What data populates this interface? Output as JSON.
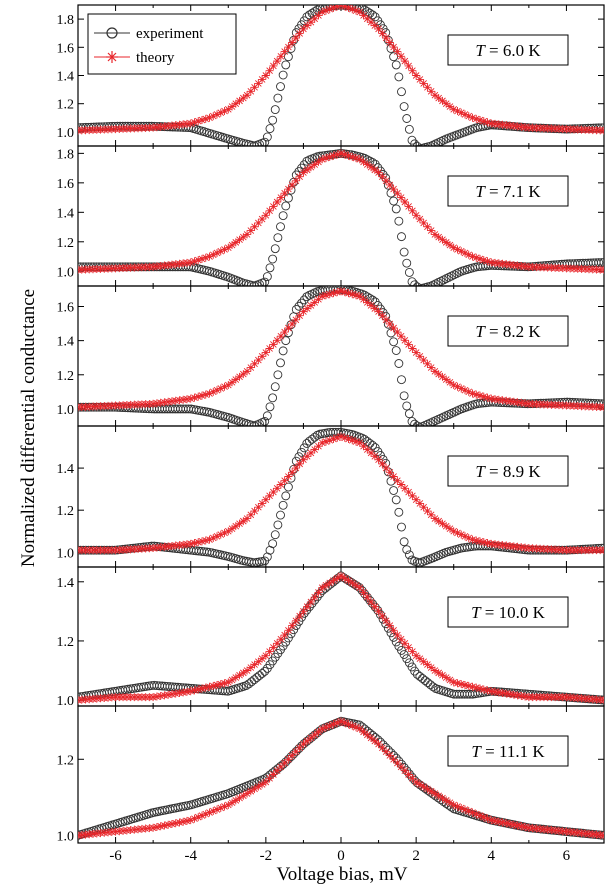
{
  "chart_data": {
    "type": "line",
    "ylabel": "Normalized differential conductance",
    "xlabel": "Voltage bias, mV",
    "xlim": [
      -7,
      7
    ],
    "x_ticks": [
      -6,
      -4,
      -2,
      0,
      2,
      4,
      6
    ],
    "grid": false,
    "legend": {
      "placement": "top-left of first panel",
      "entries": [
        {
          "name": "experiment",
          "marker": "open-circle",
          "color": "#333333"
        },
        {
          "name": "theory",
          "marker": "asterisk",
          "color": "#e8262b"
        }
      ]
    },
    "panels": [
      {
        "label_prefix": "T",
        "label_value": "= 6.0 K",
        "ylim": [
          0.9,
          1.9
        ],
        "yticks": [
          "1.0",
          "1.2",
          "1.4",
          "1.6",
          "1.8"
        ],
        "series": [
          {
            "name": "experiment",
            "x": [
              -7,
              -6,
              -5,
              -4,
              -3.5,
              -3,
              -2.6,
              -2.3,
              -2.0,
              -1.8,
              -1.5,
              -1.2,
              -0.9,
              -0.6,
              -0.3,
              0,
              0.3,
              0.6,
              0.9,
              1.2,
              1.5,
              1.7,
              1.9,
              2.1,
              2.4,
              2.8,
              3.2,
              3.6,
              4,
              5,
              6,
              7
            ],
            "y": [
              1.03,
              1.04,
              1.04,
              1.03,
              0.99,
              0.95,
              0.92,
              0.9,
              0.93,
              1.1,
              1.45,
              1.7,
              1.82,
              1.87,
              1.89,
              1.9,
              1.89,
              1.87,
              1.82,
              1.7,
              1.45,
              1.15,
              0.93,
              0.88,
              0.9,
              0.95,
              0.99,
              1.03,
              1.05,
              1.03,
              1.02,
              1.03
            ]
          },
          {
            "name": "theory",
            "x": [
              -7,
              -6,
              -5,
              -4,
              -3.5,
              -3,
              -2.5,
              -2,
              -1.5,
              -1,
              -0.5,
              0,
              0.5,
              1,
              1.5,
              2,
              2.5,
              3,
              3.5,
              4,
              5,
              6,
              7
            ],
            "y": [
              1.01,
              1.02,
              1.03,
              1.06,
              1.1,
              1.16,
              1.26,
              1.4,
              1.57,
              1.73,
              1.85,
              1.9,
              1.85,
              1.73,
              1.57,
              1.4,
              1.26,
              1.16,
              1.1,
              1.06,
              1.03,
              1.02,
              1.01
            ]
          }
        ]
      },
      {
        "label_prefix": "T",
        "label_value": "= 7.1 K",
        "ylim": [
          0.9,
          1.85
        ],
        "yticks": [
          "1.0",
          "1.2",
          "1.4",
          "1.6",
          "1.8"
        ],
        "series": [
          {
            "name": "experiment",
            "x": [
              -7,
              -6,
              -5,
              -4,
              -3.5,
              -3,
              -2.6,
              -2.3,
              -2.0,
              -1.8,
              -1.5,
              -1.2,
              -0.9,
              -0.6,
              -0.3,
              0,
              0.3,
              0.6,
              0.9,
              1.2,
              1.5,
              1.7,
              1.9,
              2.1,
              2.4,
              2.8,
              3.2,
              3.6,
              4,
              5,
              6,
              7
            ],
            "y": [
              1.03,
              1.03,
              1.03,
              1.03,
              1.0,
              0.96,
              0.92,
              0.9,
              0.93,
              1.1,
              1.42,
              1.65,
              1.75,
              1.78,
              1.79,
              1.8,
              1.79,
              1.77,
              1.73,
              1.63,
              1.4,
              1.1,
              0.92,
              0.88,
              0.9,
              0.95,
              1.0,
              1.03,
              1.04,
              1.03,
              1.05,
              1.06
            ]
          },
          {
            "name": "theory",
            "x": [
              -7,
              -6,
              -5,
              -4,
              -3.5,
              -3,
              -2.5,
              -2,
              -1.5,
              -1,
              -0.5,
              0,
              0.5,
              1,
              1.5,
              2,
              2.5,
              3,
              3.5,
              4,
              5,
              6,
              7
            ],
            "y": [
              1.01,
              1.02,
              1.03,
              1.06,
              1.1,
              1.16,
              1.25,
              1.38,
              1.53,
              1.67,
              1.76,
              1.8,
              1.76,
              1.67,
              1.53,
              1.38,
              1.25,
              1.16,
              1.1,
              1.06,
              1.03,
              1.02,
              1.01
            ]
          }
        ]
      },
      {
        "label_prefix": "T",
        "label_value": "= 8.2 K",
        "ylim": [
          0.9,
          1.72
        ],
        "yticks": [
          "1.0",
          "1.2",
          "1.4",
          "1.6"
        ],
        "series": [
          {
            "name": "experiment",
            "x": [
              -7,
              -6,
              -5,
              -4,
              -3.5,
              -3,
              -2.6,
              -2.3,
              -2.0,
              -1.8,
              -1.5,
              -1.2,
              -0.9,
              -0.6,
              -0.3,
              0,
              0.3,
              0.6,
              0.9,
              1.2,
              1.5,
              1.7,
              1.9,
              2.1,
              2.4,
              2.8,
              3.2,
              3.6,
              4,
              5,
              6,
              7
            ],
            "y": [
              1.01,
              1.01,
              1.0,
              1.0,
              0.98,
              0.95,
              0.92,
              0.9,
              0.93,
              1.08,
              1.38,
              1.58,
              1.66,
              1.69,
              1.7,
              1.7,
              1.69,
              1.67,
              1.63,
              1.54,
              1.32,
              1.05,
              0.92,
              0.89,
              0.92,
              0.96,
              1.0,
              1.03,
              1.04,
              1.03,
              1.04,
              1.03
            ]
          },
          {
            "name": "theory",
            "x": [
              -7,
              -6,
              -5,
              -4,
              -3.5,
              -3,
              -2.5,
              -2,
              -1.5,
              -1,
              -0.5,
              0,
              0.5,
              1,
              1.5,
              2,
              2.5,
              3,
              3.5,
              4,
              5,
              6,
              7
            ],
            "y": [
              1.01,
              1.02,
              1.03,
              1.06,
              1.09,
              1.14,
              1.22,
              1.33,
              1.45,
              1.57,
              1.66,
              1.69,
              1.66,
              1.57,
              1.45,
              1.33,
              1.22,
              1.14,
              1.09,
              1.06,
              1.03,
              1.02,
              1.01
            ]
          }
        ]
      },
      {
        "label_prefix": "T",
        "label_value": "= 8.9 K",
        "ylim": [
          0.93,
          1.6
        ],
        "yticks": [
          "1.0",
          "1.2",
          "1.4"
        ],
        "series": [
          {
            "name": "experiment",
            "x": [
              -7,
              -6,
              -5,
              -4,
              -3.5,
              -3,
              -2.6,
              -2.3,
              -2.0,
              -1.8,
              -1.5,
              -1.2,
              -0.9,
              -0.6,
              -0.3,
              0,
              0.3,
              0.6,
              0.9,
              1.2,
              1.5,
              1.7,
              1.9,
              2.1,
              2.4,
              2.8,
              3.2,
              3.6,
              4,
              5,
              6,
              7
            ],
            "y": [
              1.01,
              1.01,
              1.03,
              1.01,
              1.0,
              0.98,
              0.96,
              0.95,
              0.96,
              1.05,
              1.25,
              1.43,
              1.52,
              1.56,
              1.57,
              1.57,
              1.56,
              1.54,
              1.5,
              1.42,
              1.23,
              1.03,
              0.96,
              0.95,
              0.97,
              1.0,
              1.02,
              1.03,
              1.03,
              1.01,
              1.01,
              1.02
            ]
          },
          {
            "name": "theory",
            "x": [
              -7,
              -6,
              -5,
              -4,
              -3.5,
              -3,
              -2.5,
              -2,
              -1.5,
              -1,
              -0.5,
              0,
              0.5,
              1,
              1.5,
              2,
              2.5,
              3,
              3.5,
              4,
              5,
              6,
              7
            ],
            "y": [
              1.01,
              1.01,
              1.02,
              1.04,
              1.06,
              1.1,
              1.16,
              1.25,
              1.34,
              1.44,
              1.52,
              1.55,
              1.52,
              1.44,
              1.34,
              1.25,
              1.16,
              1.1,
              1.06,
              1.04,
              1.02,
              1.01,
              1.01
            ]
          }
        ]
      },
      {
        "label_prefix": "T",
        "label_value": "= 10.0 K",
        "ylim": [
          0.98,
          1.45
        ],
        "yticks": [
          "1.0",
          "1.2",
          "1.4"
        ],
        "series": [
          {
            "name": "experiment",
            "x": [
              -7,
              -6,
              -5,
              -4,
              -3,
              -2.5,
              -2,
              -1.5,
              -1,
              -0.5,
              0,
              0.5,
              1,
              1.5,
              2,
              2.5,
              3,
              3.5,
              4,
              5,
              6,
              7
            ],
            "y": [
              1.01,
              1.03,
              1.05,
              1.04,
              1.03,
              1.05,
              1.1,
              1.19,
              1.29,
              1.37,
              1.42,
              1.38,
              1.3,
              1.19,
              1.09,
              1.04,
              1.02,
              1.02,
              1.03,
              1.02,
              1.01,
              1.0
            ]
          },
          {
            "name": "theory",
            "x": [
              -7,
              -6,
              -5,
              -4,
              -3,
              -2.5,
              -2,
              -1.5,
              -1,
              -0.5,
              0,
              0.5,
              1,
              1.5,
              2,
              2.5,
              3,
              4,
              5,
              6,
              7
            ],
            "y": [
              1.0,
              1.01,
              1.01,
              1.03,
              1.06,
              1.1,
              1.15,
              1.22,
              1.3,
              1.38,
              1.42,
              1.38,
              1.3,
              1.22,
              1.15,
              1.1,
              1.06,
              1.03,
              1.01,
              1.01,
              1.0
            ]
          }
        ]
      },
      {
        "label_prefix": "T",
        "label_value": "= 11.1 K",
        "ylim": [
          0.98,
          1.34
        ],
        "yticks": [
          "1.0",
          "1.2"
        ],
        "series": [
          {
            "name": "experiment",
            "x": [
              -7,
              -6,
              -5,
              -4,
              -3,
              -2,
              -1.5,
              -1,
              -0.5,
              0,
              0.5,
              1,
              1.5,
              2,
              3,
              4,
              5,
              6,
              7
            ],
            "y": [
              1.0,
              1.03,
              1.06,
              1.08,
              1.11,
              1.15,
              1.19,
              1.24,
              1.28,
              1.3,
              1.29,
              1.25,
              1.2,
              1.14,
              1.07,
              1.04,
              1.02,
              1.01,
              1.0
            ]
          },
          {
            "name": "theory",
            "x": [
              -7,
              -6,
              -5,
              -4,
              -3,
              -2,
              -1.5,
              -1,
              -0.5,
              0,
              0.5,
              1,
              1.5,
              2,
              3,
              4,
              5,
              6,
              7
            ],
            "y": [
              1.0,
              1.01,
              1.02,
              1.04,
              1.08,
              1.14,
              1.19,
              1.24,
              1.28,
              1.3,
              1.28,
              1.24,
              1.19,
              1.14,
              1.08,
              1.04,
              1.02,
              1.01,
              1.0
            ]
          }
        ]
      }
    ]
  }
}
